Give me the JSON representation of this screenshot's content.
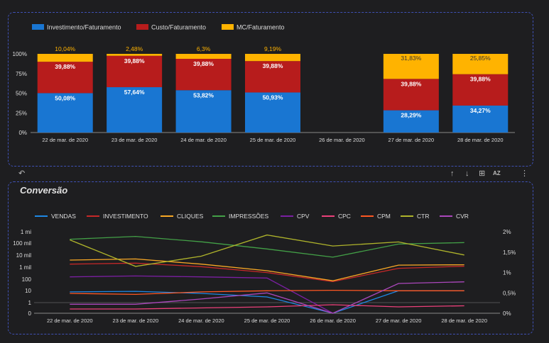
{
  "toolbar": {
    "undo_icon": "↶",
    "sort_up_icon": "↑",
    "sort_down_icon": "↓",
    "export_icon": "⊞",
    "sort_az_icon": "AZ",
    "more_icon": "⋮"
  },
  "chart2_title": "Conversão",
  "colors": {
    "investimento_faturamento": "#1976d2",
    "custo_faturamento": "#b71c1c",
    "mc_faturamento": "#ffb300",
    "vendas": "#1e88e5",
    "investimento": "#c62828",
    "cliques": "#f9a825",
    "impressoes": "#43a047",
    "cpv": "#7b1fa2",
    "cpc": "#ec407a",
    "cpm": "#ff5722",
    "ctr": "#afb42b",
    "cvr": "#ab47bc"
  },
  "chart_data": [
    {
      "type": "bar",
      "stacked": true,
      "categories": [
        "22 de mar. de 2020",
        "23 de mar. de 2020",
        "24 de mar. de 2020",
        "25 de mar. de 2020",
        "26 de mar. de 2020",
        "27 de mar. de 2020",
        "28 de mar. de 2020"
      ],
      "series": [
        {
          "name": "Investimento/Faturamento",
          "values": [
            50.08,
            57.64,
            53.82,
            50.93,
            null,
            28.29,
            34.27
          ],
          "labels": [
            "50,08%",
            "57,64%",
            "53,82%",
            "50,93%",
            "",
            "28,29%",
            "34,27%"
          ]
        },
        {
          "name": "Custo/Faturamento",
          "values": [
            39.88,
            39.88,
            39.88,
            39.88,
            null,
            39.88,
            39.88
          ],
          "labels": [
            "39,88%",
            "39,88%",
            "39,88%",
            "39,88%",
            "",
            "39,88%",
            "39,88%"
          ]
        },
        {
          "name": "MC/Faturamento",
          "values": [
            10.04,
            2.48,
            6.3,
            9.19,
            null,
            31.83,
            25.85
          ],
          "labels": [
            "10,04%",
            "2,48%",
            "6,3%",
            "9,19%",
            "",
            "31,83%",
            "25,85%"
          ]
        }
      ],
      "ylim": [
        0,
        100
      ],
      "yticks": [
        "0%",
        "25%",
        "50%",
        "75%",
        "100%"
      ],
      "legend": "top-left"
    },
    {
      "type": "line",
      "title": "Conversão",
      "categories": [
        "22 de mar. de 2020",
        "23 de mar. de 2020",
        "24 de mar. de 2020",
        "25 de mar. de 2020",
        "26 de mar. de 2020",
        "27 de mar. de 2020",
        "28 de mar. de 2020"
      ],
      "left_axis": {
        "scale": "log",
        "ticks": [
          "0",
          "1",
          "10",
          "100",
          "1 mil",
          "10 mil",
          "100 mil",
          "1 mi"
        ]
      },
      "right_axis": {
        "ticks": [
          "0%",
          "0,5%",
          "1%",
          "1,5%",
          "2%"
        ],
        "ylim": [
          0,
          2
        ]
      },
      "series": [
        {
          "name": "VENDAS",
          "axis": "left",
          "values": [
            8,
            9,
            6,
            3,
            0,
            10,
            10
          ]
        },
        {
          "name": "INVESTIMENTO",
          "axis": "left",
          "values": [
            1800,
            2200,
            1100,
            350,
            60,
            800,
            1200
          ]
        },
        {
          "name": "CLIQUES",
          "axis": "left",
          "values": [
            4000,
            5000,
            1800,
            500,
            70,
            1500,
            1600
          ]
        },
        {
          "name": "IMPRESSÕES",
          "axis": "left",
          "values": [
            230000,
            400000,
            140000,
            35000,
            7000,
            90000,
            120000
          ]
        },
        {
          "name": "CPV",
          "axis": "left",
          "values": [
            150,
            180,
            150,
            120,
            0,
            null,
            null
          ]
        },
        {
          "name": "CPC",
          "axis": "left",
          "values": [
            0.4,
            0.4,
            0.5,
            0.6,
            0.8,
            0.6,
            0.7
          ]
        },
        {
          "name": "CPM",
          "axis": "left",
          "values": [
            6,
            5,
            8,
            10,
            11,
            10,
            10
          ]
        },
        {
          "name": "CTR",
          "axis": "right",
          "values": [
            1.8,
            1.15,
            1.4,
            1.92,
            1.65,
            1.75,
            1.43
          ]
        },
        {
          "name": "CVR",
          "axis": "right",
          "values": [
            0.22,
            0.22,
            0.35,
            0.5,
            0.0,
            0.73,
            0.77
          ]
        }
      ],
      "legend": "top"
    }
  ]
}
